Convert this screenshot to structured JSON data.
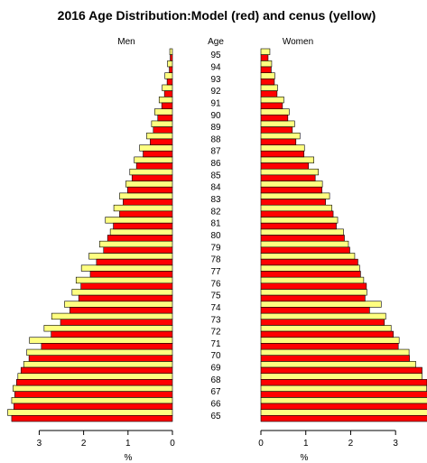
{
  "chart_data": {
    "type": "bar",
    "title": "2016 Age Distribution:Model (red) and cenus (yellow)",
    "left_panel_label": "Men",
    "center_label": "Age",
    "right_panel_label": "Women",
    "xlabel": "%",
    "ages": [
      65,
      66,
      67,
      68,
      69,
      70,
      71,
      72,
      73,
      74,
      75,
      76,
      77,
      78,
      79,
      80,
      81,
      82,
      83,
      84,
      85,
      86,
      87,
      88,
      89,
      90,
      91,
      92,
      93,
      94,
      95
    ],
    "age_labels": [
      "65",
      "66",
      "67",
      "68",
      "69",
      "70",
      "71",
      "72",
      "73",
      "74",
      "75",
      "76",
      "77",
      "78",
      "79",
      "80",
      "81",
      "82",
      "83",
      "84",
      "85",
      "86",
      "87",
      "88",
      "89",
      "90",
      "91",
      "92",
      "93",
      "94",
      "95"
    ],
    "men_xlim": [
      3.7,
      0
    ],
    "men_ticks": [
      3,
      2,
      1,
      0
    ],
    "women_xlim": [
      0,
      3.7
    ],
    "women_ticks": [
      0,
      1,
      2,
      3
    ],
    "series": [
      {
        "name": "Model",
        "color": "#ff0000",
        "men": [
          3.62,
          3.57,
          3.55,
          3.51,
          3.41,
          3.23,
          2.95,
          2.73,
          2.52,
          2.31,
          2.11,
          2.06,
          1.85,
          1.71,
          1.55,
          1.46,
          1.33,
          1.19,
          1.11,
          1.01,
          0.91,
          0.81,
          0.66,
          0.5,
          0.43,
          0.33,
          0.24,
          0.18,
          0.12,
          0.07,
          0.05
        ],
        "women": [
          3.9,
          3.84,
          3.78,
          3.7,
          3.59,
          3.31,
          3.06,
          2.95,
          2.75,
          2.42,
          2.32,
          2.35,
          2.22,
          2.16,
          1.98,
          1.86,
          1.68,
          1.61,
          1.44,
          1.36,
          1.21,
          1.06,
          0.96,
          0.78,
          0.7,
          0.6,
          0.48,
          0.36,
          0.3,
          0.23,
          0.16
        ]
      },
      {
        "name": "Census",
        "color": "#ffff80",
        "men": [
          3.71,
          3.62,
          3.59,
          3.48,
          3.35,
          3.28,
          3.22,
          2.89,
          2.72,
          2.43,
          2.26,
          2.17,
          2.05,
          1.88,
          1.64,
          1.4,
          1.51,
          1.32,
          1.19,
          1.05,
          0.96,
          0.86,
          0.74,
          0.58,
          0.47,
          0.4,
          0.3,
          0.23,
          0.17,
          0.11,
          0.06
        ],
        "women": [
          3.88,
          3.77,
          3.69,
          3.59,
          3.45,
          3.3,
          3.08,
          2.9,
          2.78,
          2.68,
          2.36,
          2.29,
          2.2,
          2.09,
          1.95,
          1.84,
          1.71,
          1.58,
          1.53,
          1.37,
          1.28,
          1.18,
          0.97,
          0.87,
          0.75,
          0.63,
          0.51,
          0.37,
          0.31,
          0.24,
          0.2
        ]
      }
    ]
  }
}
